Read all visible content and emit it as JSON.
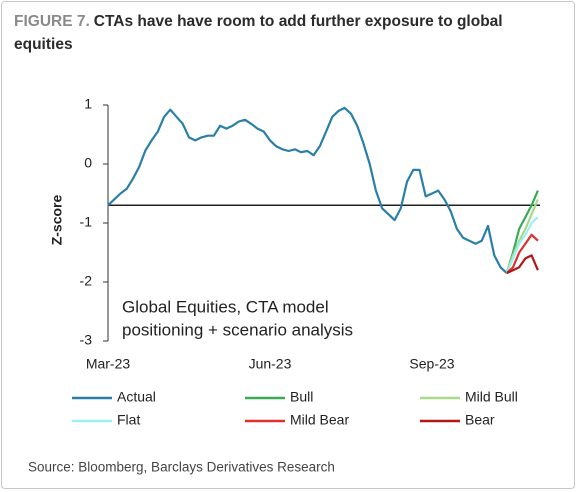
{
  "chart_data": {
    "type": "line",
    "figure_label": "FIGURE 7.",
    "title": "CTAs have have room to add further exposure to global equities",
    "annotation": [
      "Global Equities, CTA model",
      "positioning + scenario analysis"
    ],
    "y_label": "Z-score",
    "source": "Source: Bloomberg, Barclays Derivatives Research",
    "ylim": [
      -3,
      1
    ],
    "yticks": [
      -3,
      -2,
      -1,
      0,
      1
    ],
    "reference_line": -0.7,
    "categories": [
      "Mar-23",
      null,
      null,
      null,
      null,
      null,
      null,
      null,
      null,
      null,
      null,
      null,
      null,
      null,
      null,
      null,
      null,
      null,
      null,
      null,
      null,
      null,
      null,
      null,
      null,
      null,
      "Jun-23",
      null,
      null,
      null,
      null,
      null,
      null,
      null,
      null,
      null,
      null,
      null,
      null,
      null,
      null,
      null,
      null,
      null,
      null,
      null,
      null,
      null,
      null,
      null,
      null,
      null,
      "Sep-23",
      null,
      null,
      null,
      null,
      null,
      null,
      null,
      null,
      null,
      null,
      null,
      null,
      null,
      null,
      null,
      null,
      null
    ],
    "series": [
      {
        "name": "Actual",
        "color": "#2a7fa8",
        "values": [
          -0.7,
          -0.6,
          -0.5,
          -0.42,
          -0.25,
          -0.05,
          0.23,
          0.4,
          0.55,
          0.8,
          0.92,
          0.8,
          0.68,
          0.45,
          0.4,
          0.45,
          0.48,
          0.48,
          0.65,
          0.6,
          0.65,
          0.72,
          0.75,
          0.68,
          0.6,
          0.55,
          0.4,
          0.3,
          0.25,
          0.22,
          0.25,
          0.2,
          0.22,
          0.15,
          0.3,
          0.55,
          0.8,
          0.9,
          0.95,
          0.85,
          0.65,
          0.35,
          0.0,
          -0.45,
          -0.75,
          -0.85,
          -0.95,
          -0.75,
          -0.3,
          -0.1,
          -0.1,
          -0.55,
          -0.5,
          -0.45,
          -0.6,
          -0.8,
          -1.1,
          -1.25,
          -1.3,
          -1.35,
          -1.3,
          -1.05,
          -1.55,
          -1.75,
          -1.85,
          null,
          null,
          null,
          null,
          null
        ]
      },
      {
        "name": "Bull",
        "color": "#3aaa55",
        "values": [
          null,
          null,
          null,
          null,
          null,
          null,
          null,
          null,
          null,
          null,
          null,
          null,
          null,
          null,
          null,
          null,
          null,
          null,
          null,
          null,
          null,
          null,
          null,
          null,
          null,
          null,
          null,
          null,
          null,
          null,
          null,
          null,
          null,
          null,
          null,
          null,
          null,
          null,
          null,
          null,
          null,
          null,
          null,
          null,
          null,
          null,
          null,
          null,
          null,
          null,
          null,
          null,
          null,
          null,
          null,
          null,
          null,
          null,
          null,
          null,
          null,
          null,
          null,
          null,
          -1.85,
          -1.5,
          -1.1,
          -0.9,
          -0.7,
          -0.45
        ]
      },
      {
        "name": "Mild Bull",
        "color": "#a6d98a",
        "values": [
          null,
          null,
          null,
          null,
          null,
          null,
          null,
          null,
          null,
          null,
          null,
          null,
          null,
          null,
          null,
          null,
          null,
          null,
          null,
          null,
          null,
          null,
          null,
          null,
          null,
          null,
          null,
          null,
          null,
          null,
          null,
          null,
          null,
          null,
          null,
          null,
          null,
          null,
          null,
          null,
          null,
          null,
          null,
          null,
          null,
          null,
          null,
          null,
          null,
          null,
          null,
          null,
          null,
          null,
          null,
          null,
          null,
          null,
          null,
          null,
          null,
          null,
          null,
          null,
          -1.85,
          -1.55,
          -1.3,
          -1.1,
          -0.85,
          -0.6
        ]
      },
      {
        "name": "Flat",
        "color": "#9cf0f5",
        "values": [
          null,
          null,
          null,
          null,
          null,
          null,
          null,
          null,
          null,
          null,
          null,
          null,
          null,
          null,
          null,
          null,
          null,
          null,
          null,
          null,
          null,
          null,
          null,
          null,
          null,
          null,
          null,
          null,
          null,
          null,
          null,
          null,
          null,
          null,
          null,
          null,
          null,
          null,
          null,
          null,
          null,
          null,
          null,
          null,
          null,
          null,
          null,
          null,
          null,
          null,
          null,
          null,
          null,
          null,
          null,
          null,
          null,
          null,
          null,
          null,
          null,
          null,
          null,
          null,
          -1.85,
          -1.6,
          -1.35,
          -1.2,
          -1.0,
          -0.9
        ]
      },
      {
        "name": "Mild Bear",
        "color": "#e03030",
        "values": [
          null,
          null,
          null,
          null,
          null,
          null,
          null,
          null,
          null,
          null,
          null,
          null,
          null,
          null,
          null,
          null,
          null,
          null,
          null,
          null,
          null,
          null,
          null,
          null,
          null,
          null,
          null,
          null,
          null,
          null,
          null,
          null,
          null,
          null,
          null,
          null,
          null,
          null,
          null,
          null,
          null,
          null,
          null,
          null,
          null,
          null,
          null,
          null,
          null,
          null,
          null,
          null,
          null,
          null,
          null,
          null,
          null,
          null,
          null,
          null,
          null,
          null,
          null,
          null,
          -1.85,
          -1.75,
          -1.5,
          -1.35,
          -1.2,
          -1.3
        ]
      },
      {
        "name": "Bear",
        "color": "#b01818",
        "values": [
          null,
          null,
          null,
          null,
          null,
          null,
          null,
          null,
          null,
          null,
          null,
          null,
          null,
          null,
          null,
          null,
          null,
          null,
          null,
          null,
          null,
          null,
          null,
          null,
          null,
          null,
          null,
          null,
          null,
          null,
          null,
          null,
          null,
          null,
          null,
          null,
          null,
          null,
          null,
          null,
          null,
          null,
          null,
          null,
          null,
          null,
          null,
          null,
          null,
          null,
          null,
          null,
          null,
          null,
          null,
          null,
          null,
          null,
          null,
          null,
          null,
          null,
          null,
          null,
          -1.85,
          -1.8,
          -1.75,
          -1.6,
          -1.55,
          -1.8
        ]
      }
    ]
  }
}
